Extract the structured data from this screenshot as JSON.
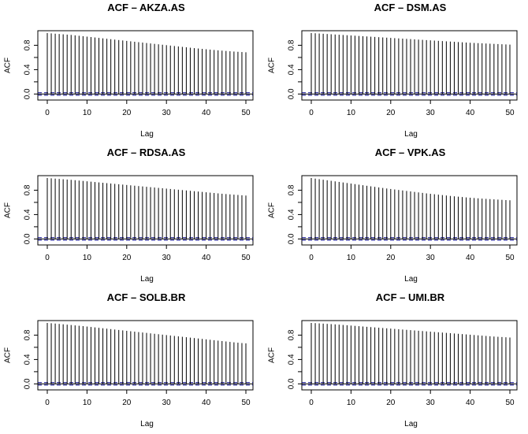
{
  "chart_data": [
    {
      "type": "bar",
      "title": "ACF – AKZA.AS",
      "xlabel": "Lag",
      "ylabel": "ACF",
      "xlim": [
        0,
        50
      ],
      "ylim": [
        -0.06,
        1.0
      ],
      "xticks": [
        "0",
        "10",
        "20",
        "30",
        "40",
        "50"
      ],
      "yticks": [
        "0.0",
        "0.4",
        "0.8"
      ],
      "ci_bound": 0.02,
      "ci_color": "#00008b",
      "lags": [
        0,
        1,
        2,
        3,
        4,
        5,
        6,
        7,
        8,
        9,
        10,
        11,
        12,
        13,
        14,
        15,
        16,
        17,
        18,
        19,
        20,
        21,
        22,
        23,
        24,
        25,
        26,
        27,
        28,
        29,
        30,
        31,
        32,
        33,
        34,
        35,
        36,
        37,
        38,
        39,
        40,
        41,
        42,
        43,
        44,
        45,
        46,
        47,
        48,
        49,
        50
      ],
      "values": [
        1.0,
        0.995,
        0.99,
        0.985,
        0.98,
        0.975,
        0.97,
        0.963,
        0.956,
        0.949,
        0.942,
        0.935,
        0.928,
        0.921,
        0.914,
        0.907,
        0.9,
        0.893,
        0.886,
        0.879,
        0.872,
        0.865,
        0.858,
        0.851,
        0.844,
        0.837,
        0.83,
        0.823,
        0.816,
        0.809,
        0.802,
        0.795,
        0.788,
        0.781,
        0.774,
        0.767,
        0.76,
        0.753,
        0.747,
        0.741,
        0.735,
        0.729,
        0.723,
        0.717,
        0.712,
        0.707,
        0.702,
        0.697,
        0.693,
        0.689,
        0.685
      ]
    },
    {
      "type": "bar",
      "title": "ACF – DSM.AS",
      "xlabel": "Lag",
      "ylabel": "ACF",
      "xlim": [
        0,
        50
      ],
      "ylim": [
        -0.06,
        1.0
      ],
      "xticks": [
        "0",
        "10",
        "20",
        "30",
        "40",
        "50"
      ],
      "yticks": [
        "0.0",
        "0.4",
        "0.8"
      ],
      "ci_bound": 0.02,
      "ci_color": "#00008b",
      "lags": [
        0,
        1,
        2,
        3,
        4,
        5,
        6,
        7,
        8,
        9,
        10,
        11,
        12,
        13,
        14,
        15,
        16,
        17,
        18,
        19,
        20,
        21,
        22,
        23,
        24,
        25,
        26,
        27,
        28,
        29,
        30,
        31,
        32,
        33,
        34,
        35,
        36,
        37,
        38,
        39,
        40,
        41,
        42,
        43,
        44,
        45,
        46,
        47,
        48,
        49,
        50
      ],
      "values": [
        1.0,
        0.997,
        0.993,
        0.989,
        0.985,
        0.981,
        0.977,
        0.973,
        0.969,
        0.965,
        0.961,
        0.957,
        0.953,
        0.949,
        0.945,
        0.941,
        0.937,
        0.933,
        0.929,
        0.925,
        0.921,
        0.917,
        0.913,
        0.909,
        0.905,
        0.901,
        0.897,
        0.893,
        0.889,
        0.885,
        0.881,
        0.877,
        0.873,
        0.869,
        0.865,
        0.861,
        0.857,
        0.853,
        0.849,
        0.845,
        0.841,
        0.838,
        0.835,
        0.832,
        0.829,
        0.826,
        0.823,
        0.82,
        0.817,
        0.814,
        0.811
      ]
    },
    {
      "type": "bar",
      "title": "ACF – RDSA.AS",
      "xlabel": "Lag",
      "ylabel": "ACF",
      "xlim": [
        0,
        50
      ],
      "ylim": [
        -0.06,
        1.0
      ],
      "xticks": [
        "0",
        "10",
        "20",
        "30",
        "40",
        "50"
      ],
      "yticks": [
        "0.0",
        "0.4",
        "0.8"
      ],
      "ci_bound": 0.02,
      "ci_color": "#00008b",
      "lags": [
        0,
        1,
        2,
        3,
        4,
        5,
        6,
        7,
        8,
        9,
        10,
        11,
        12,
        13,
        14,
        15,
        16,
        17,
        18,
        19,
        20,
        21,
        22,
        23,
        24,
        25,
        26,
        27,
        28,
        29,
        30,
        31,
        32,
        33,
        34,
        35,
        36,
        37,
        38,
        39,
        40,
        41,
        42,
        43,
        44,
        45,
        46,
        47,
        48,
        49,
        50
      ],
      "values": [
        1.0,
        0.995,
        0.99,
        0.985,
        0.98,
        0.975,
        0.97,
        0.964,
        0.958,
        0.952,
        0.946,
        0.94,
        0.934,
        0.928,
        0.922,
        0.916,
        0.91,
        0.904,
        0.898,
        0.892,
        0.886,
        0.88,
        0.874,
        0.868,
        0.862,
        0.856,
        0.85,
        0.844,
        0.838,
        0.832,
        0.826,
        0.82,
        0.814,
        0.808,
        0.802,
        0.796,
        0.79,
        0.784,
        0.778,
        0.772,
        0.766,
        0.76,
        0.754,
        0.748,
        0.742,
        0.737,
        0.732,
        0.727,
        0.722,
        0.717,
        0.712
      ]
    },
    {
      "type": "bar",
      "title": "ACF – VPK.AS",
      "xlabel": "Lag",
      "ylabel": "ACF",
      "xlim": [
        0,
        50
      ],
      "ylim": [
        -0.06,
        1.0
      ],
      "xticks": [
        "0",
        "10",
        "20",
        "30",
        "40",
        "50"
      ],
      "yticks": [
        "0.0",
        "0.4",
        "0.8"
      ],
      "ci_bound": 0.02,
      "ci_color": "#00008b",
      "lags": [
        0,
        1,
        2,
        3,
        4,
        5,
        6,
        7,
        8,
        9,
        10,
        11,
        12,
        13,
        14,
        15,
        16,
        17,
        18,
        19,
        20,
        21,
        22,
        23,
        24,
        25,
        26,
        27,
        28,
        29,
        30,
        31,
        32,
        33,
        34,
        35,
        36,
        37,
        38,
        39,
        40,
        41,
        42,
        43,
        44,
        45,
        46,
        47,
        48,
        49,
        50
      ],
      "values": [
        1.0,
        0.99,
        0.981,
        0.972,
        0.963,
        0.954,
        0.945,
        0.936,
        0.927,
        0.918,
        0.909,
        0.9,
        0.891,
        0.882,
        0.873,
        0.864,
        0.855,
        0.846,
        0.837,
        0.828,
        0.82,
        0.812,
        0.804,
        0.796,
        0.788,
        0.78,
        0.772,
        0.764,
        0.756,
        0.748,
        0.741,
        0.734,
        0.727,
        0.72,
        0.713,
        0.706,
        0.7,
        0.694,
        0.688,
        0.682,
        0.677,
        0.672,
        0.667,
        0.662,
        0.658,
        0.654,
        0.65,
        0.646,
        0.642,
        0.638,
        0.635
      ]
    },
    {
      "type": "bar",
      "title": "ACF – SOLB.BR",
      "xlabel": "Lag",
      "ylabel": "ACF",
      "xlim": [
        0,
        50
      ],
      "ylim": [
        -0.06,
        1.0
      ],
      "xticks": [
        "0",
        "10",
        "20",
        "30",
        "40",
        "50"
      ],
      "yticks": [
        "0.0",
        "0.4",
        "0.8"
      ],
      "ci_bound": 0.02,
      "ci_color": "#00008b",
      "lags": [
        0,
        1,
        2,
        3,
        4,
        5,
        6,
        7,
        8,
        9,
        10,
        11,
        12,
        13,
        14,
        15,
        16,
        17,
        18,
        19,
        20,
        21,
        22,
        23,
        24,
        25,
        26,
        27,
        28,
        29,
        30,
        31,
        32,
        33,
        34,
        35,
        36,
        37,
        38,
        39,
        40,
        41,
        42,
        43,
        44,
        45,
        46,
        47,
        48,
        49,
        50
      ],
      "values": [
        1.0,
        0.995,
        0.99,
        0.984,
        0.978,
        0.972,
        0.966,
        0.96,
        0.954,
        0.948,
        0.941,
        0.934,
        0.927,
        0.92,
        0.913,
        0.906,
        0.899,
        0.892,
        0.885,
        0.878,
        0.871,
        0.864,
        0.857,
        0.85,
        0.843,
        0.836,
        0.829,
        0.822,
        0.815,
        0.808,
        0.801,
        0.794,
        0.787,
        0.78,
        0.773,
        0.766,
        0.759,
        0.752,
        0.745,
        0.738,
        0.731,
        0.724,
        0.717,
        0.71,
        0.703,
        0.696,
        0.689,
        0.682,
        0.676,
        0.67,
        0.665
      ]
    },
    {
      "type": "bar",
      "title": "ACF – UMI.BR",
      "xlabel": "Lag",
      "ylabel": "ACF",
      "xlim": [
        0,
        50
      ],
      "ylim": [
        -0.06,
        1.0
      ],
      "xticks": [
        "0",
        "10",
        "20",
        "30",
        "40",
        "50"
      ],
      "yticks": [
        "0.0",
        "0.4",
        "0.8"
      ],
      "ci_bound": 0.02,
      "ci_color": "#00008b",
      "lags": [
        0,
        1,
        2,
        3,
        4,
        5,
        6,
        7,
        8,
        9,
        10,
        11,
        12,
        13,
        14,
        15,
        16,
        17,
        18,
        19,
        20,
        21,
        22,
        23,
        24,
        25,
        26,
        27,
        28,
        29,
        30,
        31,
        32,
        33,
        34,
        35,
        36,
        37,
        38,
        39,
        40,
        41,
        42,
        43,
        44,
        45,
        46,
        47,
        48,
        49,
        50
      ],
      "values": [
        1.0,
        0.997,
        0.993,
        0.989,
        0.985,
        0.981,
        0.977,
        0.972,
        0.967,
        0.962,
        0.957,
        0.952,
        0.947,
        0.942,
        0.937,
        0.932,
        0.927,
        0.922,
        0.917,
        0.912,
        0.907,
        0.902,
        0.897,
        0.892,
        0.887,
        0.882,
        0.877,
        0.872,
        0.867,
        0.862,
        0.857,
        0.852,
        0.847,
        0.842,
        0.837,
        0.832,
        0.827,
        0.822,
        0.817,
        0.812,
        0.807,
        0.802,
        0.797,
        0.792,
        0.787,
        0.782,
        0.777,
        0.773,
        0.769,
        0.765,
        0.761
      ]
    }
  ]
}
